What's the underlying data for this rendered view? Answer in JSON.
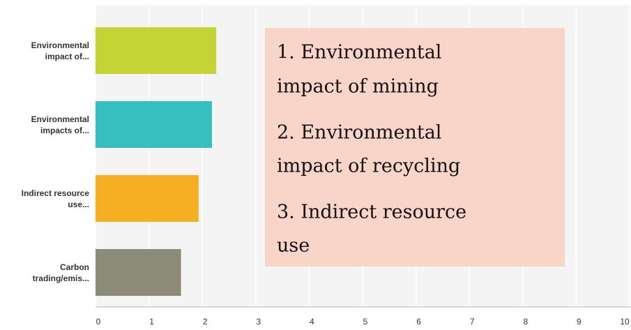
{
  "chart_data": {
    "type": "barh",
    "categories": [
      "Environmental impact of...",
      "Environmental impacts of...",
      "Indirect resource use...",
      "Carbon trading/emis..."
    ],
    "values": [
      2.26,
      2.18,
      1.93,
      1.6
    ],
    "colors": [
      "#c5d334",
      "#36bfbf",
      "#f6ae22",
      "#8b8b78"
    ],
    "xlim": [
      0,
      10
    ],
    "xticks": [
      0,
      1,
      2,
      3,
      4,
      5,
      6,
      7,
      8,
      9,
      10
    ],
    "grid": true,
    "annotation": [
      "1. Environmental",
      "impact of mining",
      "2. Environmental",
      "impact of recycling",
      "3. Indirect resource",
      "use"
    ]
  }
}
